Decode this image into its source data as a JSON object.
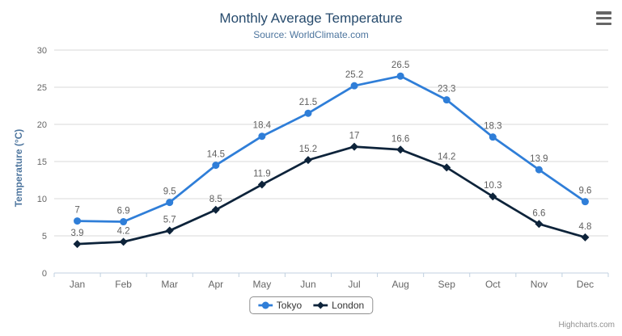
{
  "header": {
    "title": "Monthly Average Temperature",
    "subtitle": "Source: WorldClimate.com"
  },
  "credits": "Highcharts.com",
  "colors": {
    "title": "#274b6d",
    "subtitle": "#4d759e",
    "axis_title": "#4d759e",
    "axis_labels": "#666666",
    "data_labels": "#606060",
    "gridline": "#d8d8d8",
    "axis_line": "#c0d0e0",
    "legend_border": "#909090",
    "tokyo": "#2f7ed8",
    "london": "#0d233a"
  },
  "chart_data": {
    "type": "line",
    "title": "Monthly Average Temperature",
    "subtitle": "Source: WorldClimate.com",
    "categories": [
      "Jan",
      "Feb",
      "Mar",
      "Apr",
      "May",
      "Jun",
      "Jul",
      "Aug",
      "Sep",
      "Oct",
      "Nov",
      "Dec"
    ],
    "series": [
      {
        "name": "Tokyo",
        "color": "#2f7ed8",
        "marker": "circle",
        "values": [
          7,
          6.9,
          9.5,
          14.5,
          18.4,
          21.5,
          25.2,
          26.5,
          23.3,
          18.3,
          13.9,
          9.6
        ]
      },
      {
        "name": "London",
        "color": "#0d233a",
        "marker": "diamond",
        "values": [
          3.9,
          4.2,
          5.7,
          8.5,
          11.9,
          15.2,
          17,
          16.6,
          14.2,
          10.3,
          6.6,
          4.8
        ]
      }
    ],
    "xlabel": "",
    "ylabel": "Temperature (°C)",
    "ylim": [
      0,
      30
    ],
    "ytick_step": 5,
    "yticks": [
      0,
      5,
      10,
      15,
      20,
      25,
      30
    ],
    "grid": "horizontal",
    "data_labels_shown": true,
    "legend_position": "bottom-center"
  }
}
